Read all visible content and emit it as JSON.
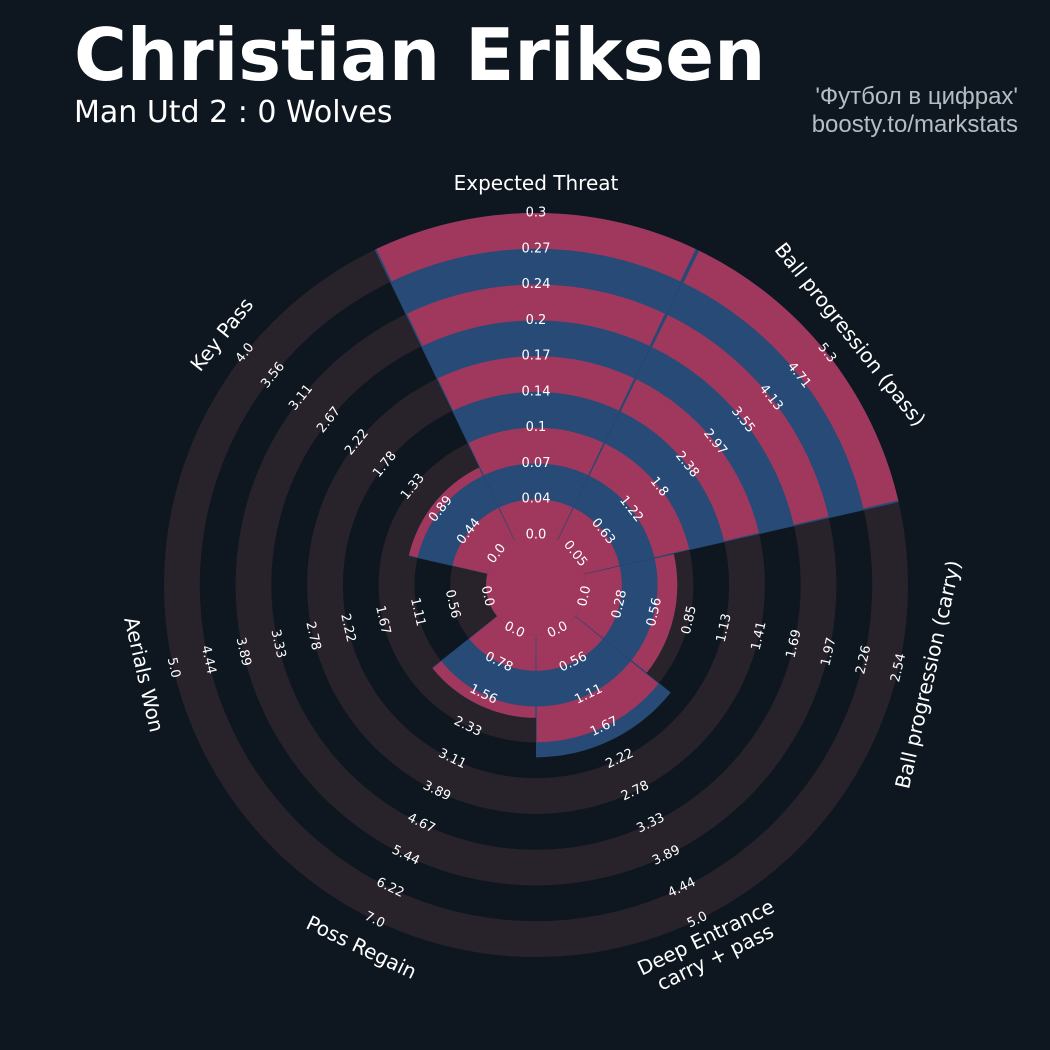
{
  "title": "Christian Eriksen",
  "subtitle": "Man Utd 2 : 0 Wolves",
  "credit_lines": [
    "'Футбол в цифрах'",
    "boosty.to/markstats"
  ],
  "colors": {
    "background": "#0e1720",
    "ring_band": "#28222a",
    "slice_blue": "#274a77",
    "slice_pink": "#a0385e",
    "text": "#ffffff",
    "credit": "#b7bcc2"
  },
  "chart_data": {
    "type": "radar",
    "player": "Christian Eriksen",
    "parameters": [
      {
        "name": "Expected Threat",
        "label_lines": [
          "Expected Threat"
        ],
        "min": 0.0,
        "max": 0.3,
        "value": 0.3,
        "ticks": [
          "0.0",
          "0.04",
          "0.07",
          "0.1",
          "0.14",
          "0.17",
          "0.2",
          "0.24",
          "0.27",
          "0.3"
        ]
      },
      {
        "name": "Ball progression (pass)",
        "label_lines": [
          "Ball progression (pass)"
        ],
        "min": 0.0,
        "max": 5.3,
        "value": 5.3,
        "ticks": [
          "0.05",
          "0.63",
          "1.22",
          "1.8",
          "2.38",
          "2.97",
          "3.55",
          "4.13",
          "4.71",
          "5.3"
        ]
      },
      {
        "name": "Ball progression (carry)",
        "label_lines": [
          "Ball progression (carry)"
        ],
        "min": 0.0,
        "max": 2.54,
        "value": 0.72,
        "ticks": [
          "0.0",
          "0.28",
          "0.56",
          "0.85",
          "1.13",
          "1.41",
          "1.69",
          "1.97",
          "2.26",
          "2.54"
        ]
      },
      {
        "name": "Deep Entrance carry + pass",
        "label_lines": [
          "Deep Entrance",
          "carry + pass"
        ],
        "min": 0.0,
        "max": 5.0,
        "value": 1.9,
        "ticks": [
          "0.0",
          "0.56",
          "1.11",
          "1.67",
          "2.22",
          "2.78",
          "3.33",
          "3.89",
          "4.44",
          "5.0"
        ]
      },
      {
        "name": "Poss Regain",
        "label_lines": [
          "Poss Regain"
        ],
        "min": 0.0,
        "max": 7.0,
        "value": 1.8,
        "ticks": [
          "0.0",
          "0.78",
          "1.56",
          "2.33",
          "3.11",
          "3.89",
          "4.67",
          "5.44",
          "6.22",
          "7.0"
        ]
      },
      {
        "name": "Aerials Won",
        "label_lines": [
          "Aerials Won"
        ],
        "min": 0.0,
        "max": 5.0,
        "value": 0.0,
        "ticks": [
          "0.0",
          "0.56",
          "1.11",
          "1.67",
          "2.22",
          "2.78",
          "3.33",
          "3.89",
          "4.44",
          "5.0"
        ]
      },
      {
        "name": "Key Pass",
        "label_lines": [
          "Key Pass"
        ],
        "min": 0.0,
        "max": 4.0,
        "value": 1.0,
        "ticks": [
          "0.0",
          "0.44",
          "0.89",
          "1.33",
          "1.78",
          "2.22",
          "2.67",
          "3.11",
          "3.56",
          "4.0"
        ]
      }
    ]
  }
}
